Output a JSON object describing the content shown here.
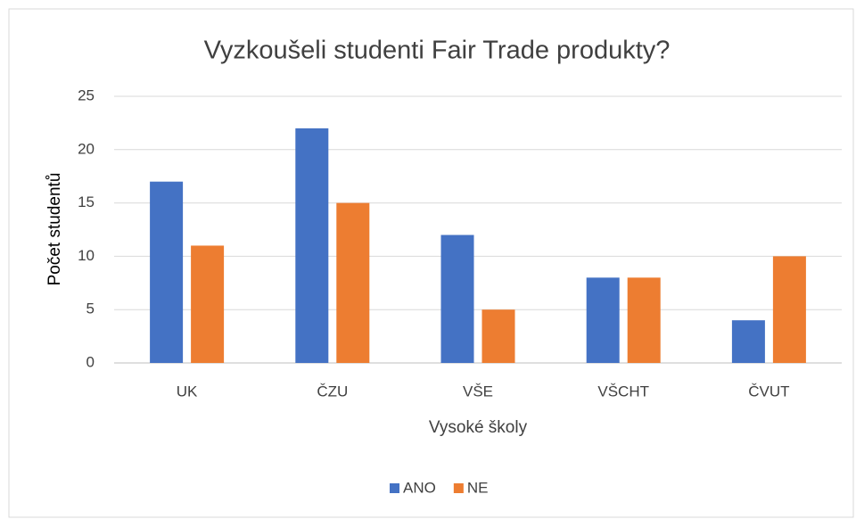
{
  "chart_data": {
    "type": "bar",
    "title": "Vyzkoušeli studenti Fair Trade produkty?",
    "x_label": "Vysoké školy",
    "y_label": "Počet studentů",
    "categories": [
      "UK",
      "ČZU",
      "VŠE",
      "VŠCHT",
      "ČVUT"
    ],
    "series": [
      {
        "name": "ANO",
        "color": "#4472c4",
        "values": [
          17,
          22,
          12,
          8,
          4
        ]
      },
      {
        "name": "NE",
        "color": "#ed7d31",
        "values": [
          11,
          15,
          5,
          8,
          10
        ]
      }
    ],
    "ylim": [
      0,
      25
    ],
    "yticks": [
      0,
      5,
      10,
      15,
      20,
      25
    ],
    "grid": true,
    "legend": "bottom"
  }
}
